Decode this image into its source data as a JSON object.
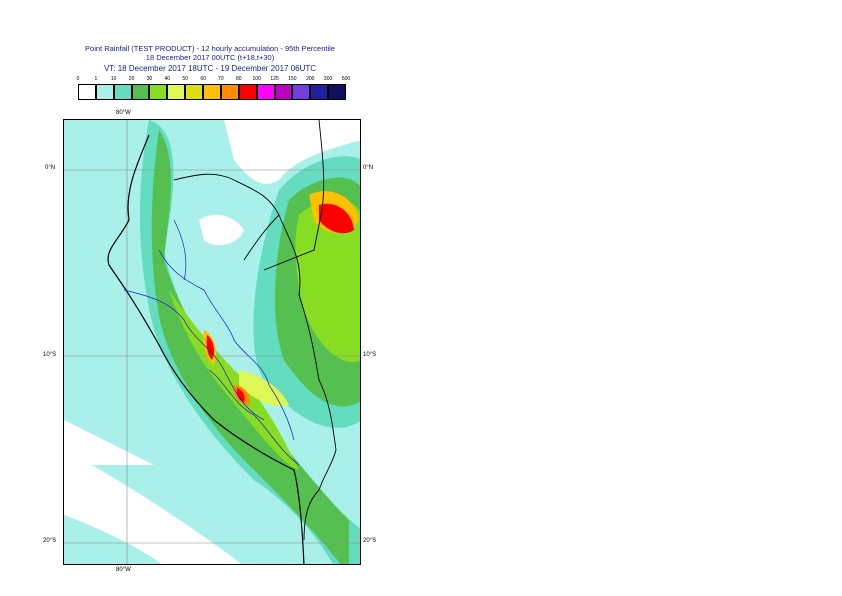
{
  "title": {
    "line1": "Point Rainfall (TEST PRODUCT) - 12 hourly accumulation - 95th Percentile",
    "line2": "18 December 2017 00UTC (t+18,t+30)",
    "line3": "VT: 18 December 2017 18UTC - 19 December 2017 06UTC"
  },
  "legend": {
    "labels": [
      "0",
      "1",
      "10",
      "20",
      "30",
      "40",
      "50",
      "60",
      "70",
      "80",
      "100",
      "125",
      "150",
      "200",
      "300",
      "500"
    ],
    "colors": [
      "#ffffff",
      "#a9f0ea",
      "#64dcc0",
      "#55c050",
      "#88dd22",
      "#ddf855",
      "#dddd11",
      "#ffc000",
      "#ff8c00",
      "#ff0000",
      "#ff00ff",
      "#c000c0",
      "#7040e0",
      "#2020a0",
      "#101060"
    ]
  },
  "axes": {
    "lon_top": "80°W",
    "lon_bottom": "80°W",
    "lat_left": [
      "0°N",
      "10°S",
      "20°S"
    ],
    "lat_right": [
      "0°N",
      "10°S",
      "20°S"
    ]
  }
}
